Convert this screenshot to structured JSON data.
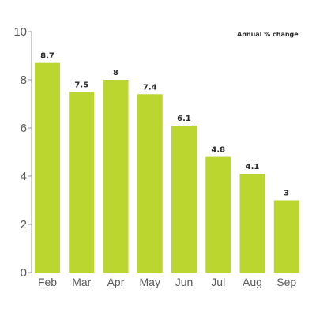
{
  "annotation": "Annual % change",
  "colors": {
    "bar": "#bcd630",
    "axis": "#9a9a9a",
    "text": "#5a5a5a"
  },
  "chart_data": {
    "type": "bar",
    "categories": [
      "Feb",
      "Mar",
      "Apr",
      "May",
      "Jun",
      "Jul",
      "Aug",
      "Sep"
    ],
    "values": [
      8.7,
      7.5,
      8,
      7.4,
      6.1,
      4.8,
      4.1,
      3
    ],
    "value_labels": [
      "8.7",
      "7.5",
      "8",
      "7.4",
      "6.1",
      "4.8",
      "4.1",
      "3"
    ],
    "y_ticks": [
      "0",
      "2",
      "4",
      "6",
      "8",
      "10"
    ],
    "ylim": [
      0,
      10
    ],
    "grid": false,
    "legend": "none"
  }
}
